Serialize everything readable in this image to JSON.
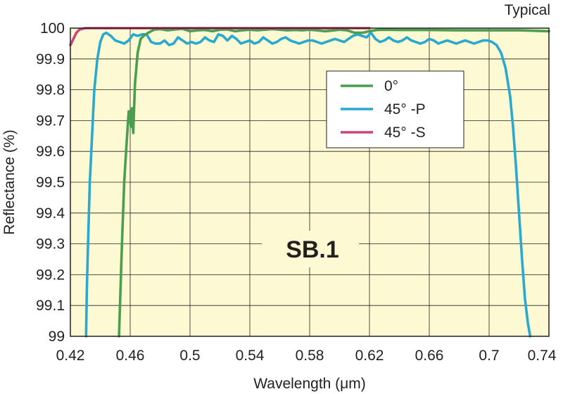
{
  "corner_label": "Typical",
  "center_label": "SB.1",
  "chart_data": {
    "type": "line",
    "title": "",
    "xlabel": "Wavelength (μm)",
    "ylabel": "Reflectance (%)",
    "xlim": [
      0.42,
      0.74
    ],
    "ylim": [
      99.0,
      100.0
    ],
    "xticks": [
      "0.42",
      "0.46",
      "0.5",
      "0.54",
      "0.58",
      "0.62",
      "0.66",
      "0.7",
      "0.74"
    ],
    "yticks": [
      "99",
      "99.1",
      "99.2",
      "99.3",
      "99.4",
      "99.5",
      "99.6",
      "99.7",
      "99.8",
      "99.9",
      "100"
    ],
    "grid": true,
    "plot_background": "#fdf9d3",
    "legend_position": "upper-right",
    "series": [
      {
        "name": "0°",
        "color": "#4a9e4f",
        "x": [
          0.4525,
          0.4545,
          0.456,
          0.4575,
          0.459,
          0.46,
          0.4605,
          0.461,
          0.4612,
          0.462,
          0.4632,
          0.465,
          0.467,
          0.469,
          0.472,
          0.476,
          0.48,
          0.485,
          0.49,
          0.495,
          0.5,
          0.505,
          0.51,
          0.515,
          0.52,
          0.525,
          0.53,
          0.535,
          0.54,
          0.545,
          0.55,
          0.555,
          0.56,
          0.565,
          0.57,
          0.575,
          0.58,
          0.585,
          0.59,
          0.595,
          0.6,
          0.605,
          0.61,
          0.615,
          0.62,
          0.625,
          0.63,
          0.64,
          0.66,
          0.68,
          0.7,
          0.72,
          0.74
        ],
        "y": [
          99.0,
          99.3,
          99.5,
          99.62,
          99.73,
          99.7,
          99.68,
          99.7,
          99.74,
          99.66,
          99.82,
          99.92,
          99.965,
          99.975,
          99.985,
          99.995,
          99.997,
          99.993,
          99.996,
          99.998,
          99.99,
          99.993,
          99.994,
          99.99,
          99.995,
          99.996,
          99.99,
          99.993,
          99.995,
          99.993,
          99.995,
          99.997,
          99.995,
          99.993,
          99.994,
          99.993,
          99.995,
          99.993,
          99.99,
          99.992,
          99.995,
          99.993,
          99.985,
          99.985,
          99.99,
          99.994,
          99.995,
          99.994,
          99.994,
          99.993,
          99.993,
          99.993,
          99.99
        ]
      },
      {
        "name": "45° -P",
        "color": "#2aa9d0",
        "x": [
          0.4305,
          0.431,
          0.4318,
          0.433,
          0.4345,
          0.436,
          0.438,
          0.44,
          0.442,
          0.444,
          0.447,
          0.45,
          0.453,
          0.456,
          0.459,
          0.462,
          0.465,
          0.468,
          0.471,
          0.474,
          0.477,
          0.48,
          0.483,
          0.486,
          0.489,
          0.492,
          0.495,
          0.498,
          0.501,
          0.504,
          0.507,
          0.51,
          0.513,
          0.516,
          0.519,
          0.522,
          0.525,
          0.528,
          0.531,
          0.534,
          0.537,
          0.54,
          0.543,
          0.546,
          0.549,
          0.552,
          0.555,
          0.558,
          0.561,
          0.564,
          0.567,
          0.57,
          0.573,
          0.576,
          0.579,
          0.582,
          0.585,
          0.588,
          0.591,
          0.594,
          0.597,
          0.6,
          0.603,
          0.606,
          0.609,
          0.612,
          0.615,
          0.618,
          0.621,
          0.624,
          0.627,
          0.63,
          0.633,
          0.636,
          0.639,
          0.642,
          0.645,
          0.648,
          0.651,
          0.654,
          0.657,
          0.66,
          0.663,
          0.666,
          0.669,
          0.672,
          0.675,
          0.678,
          0.681,
          0.684,
          0.687,
          0.69,
          0.693,
          0.696,
          0.699,
          0.702,
          0.705,
          0.708,
          0.711,
          0.714,
          0.716,
          0.718,
          0.72,
          0.722,
          0.724,
          0.726,
          0.7275
        ],
        "y": [
          99.0,
          99.15,
          99.3,
          99.5,
          99.65,
          99.8,
          99.9,
          99.955,
          99.98,
          99.985,
          99.975,
          99.96,
          99.955,
          99.95,
          99.96,
          99.98,
          99.975,
          99.98,
          99.98,
          99.955,
          99.95,
          99.95,
          99.96,
          99.945,
          99.95,
          99.97,
          99.96,
          99.95,
          99.955,
          99.95,
          99.955,
          99.97,
          99.96,
          99.955,
          99.98,
          99.975,
          99.96,
          99.975,
          99.965,
          99.95,
          99.955,
          99.96,
          99.95,
          99.955,
          99.97,
          99.96,
          99.95,
          99.955,
          99.965,
          99.97,
          99.96,
          99.955,
          99.95,
          99.955,
          99.96,
          99.96,
          99.955,
          99.95,
          99.955,
          99.96,
          99.965,
          99.96,
          99.955,
          99.965,
          99.975,
          99.98,
          99.975,
          99.97,
          99.985,
          99.965,
          99.955,
          99.96,
          99.97,
          99.96,
          99.955,
          99.96,
          99.97,
          99.96,
          99.955,
          99.95,
          99.955,
          99.965,
          99.96,
          99.95,
          99.955,
          99.96,
          99.955,
          99.95,
          99.955,
          99.96,
          99.955,
          99.95,
          99.955,
          99.96,
          99.96,
          99.955,
          99.945,
          99.92,
          99.87,
          99.78,
          99.68,
          99.55,
          99.4,
          99.25,
          99.12,
          99.04,
          99.0
        ]
      },
      {
        "name": "45° -S",
        "color": "#c8467d",
        "x": [
          0.42,
          0.422,
          0.424,
          0.426,
          0.428,
          0.43,
          0.44,
          0.46,
          0.48,
          0.5,
          0.52,
          0.54,
          0.56,
          0.58,
          0.6,
          0.62
        ],
        "y": [
          99.945,
          99.965,
          99.985,
          99.995,
          99.998,
          100.0,
          100.0,
          100.0,
          100.0,
          100.0,
          100.0,
          100.0,
          100.0,
          100.0,
          100.0,
          100.0
        ]
      }
    ]
  }
}
